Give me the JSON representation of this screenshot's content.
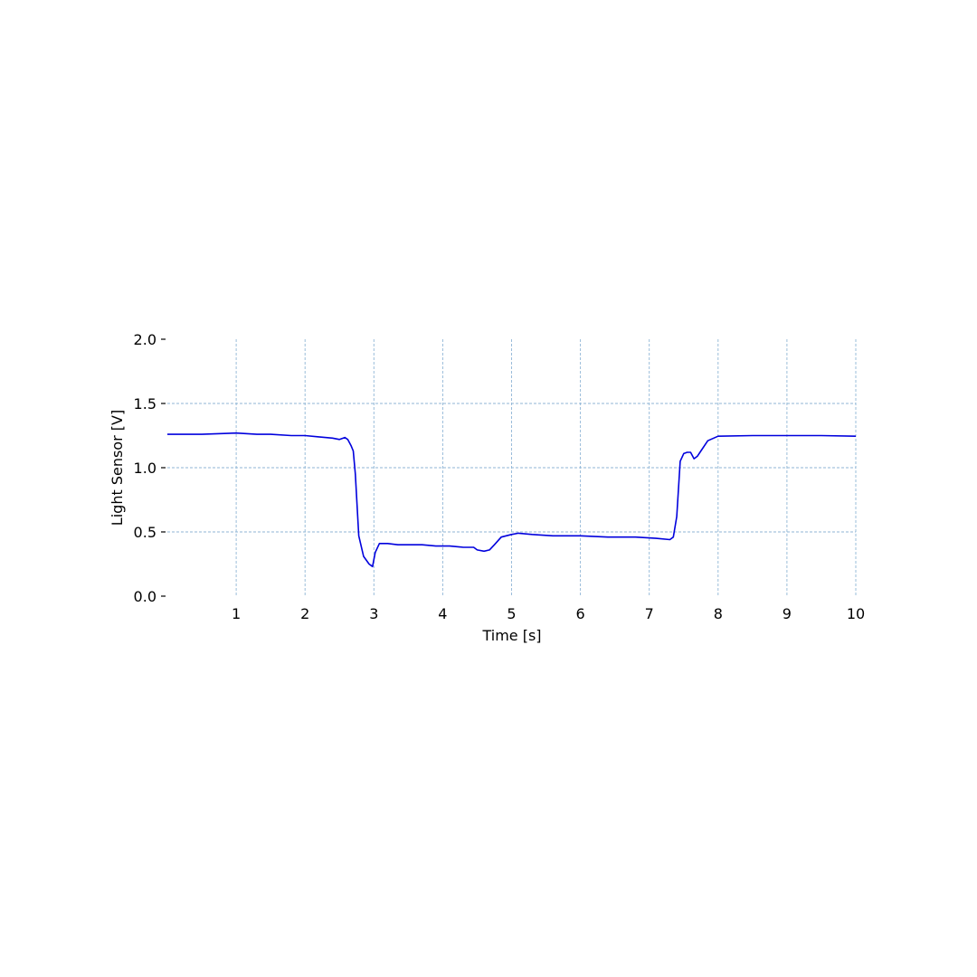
{
  "chart_data": {
    "type": "line",
    "title": "",
    "xlabel": "Time [s]",
    "ylabel": "Light Sensor [V]",
    "xlim": [
      0,
      10
    ],
    "ylim": [
      0,
      2
    ],
    "grid": true,
    "legend": false,
    "colors": {
      "line": "#0000dd",
      "grid": "#8fb6d6",
      "tick_dash": "#000000"
    },
    "x_ticks": [
      1,
      2,
      3,
      4,
      5,
      6,
      7,
      8,
      9,
      10
    ],
    "x_tick_labels": [
      "1",
      "2",
      "3",
      "4",
      "5",
      "6",
      "7",
      "8",
      "9",
      "10"
    ],
    "y_ticks": [
      0,
      0.5,
      1,
      1.5,
      2
    ],
    "y_tick_labels": [
      "0.0",
      "0.5",
      "1.0",
      "1.5",
      "2.0"
    ],
    "series": [
      {
        "x": [
          0,
          0.5,
          1.0,
          1.3,
          1.5,
          1.8,
          2.0,
          2.2,
          2.4,
          2.5,
          2.58,
          2.62,
          2.67,
          2.7,
          2.73,
          2.78,
          2.85,
          2.93,
          2.98,
          3.02,
          3.08,
          3.2,
          3.35,
          3.5,
          3.7,
          3.9,
          4.1,
          4.3,
          4.45,
          4.5,
          4.6,
          4.68,
          4.75,
          4.85,
          5.0,
          5.1,
          5.3,
          5.6,
          6.0,
          6.4,
          6.8,
          7.1,
          7.3,
          7.35,
          7.4,
          7.45,
          7.5,
          7.55,
          7.6,
          7.65,
          7.7,
          7.75,
          7.85,
          8.0,
          8.5,
          9.0,
          9.5,
          10.0
        ],
        "y": [
          1.26,
          1.26,
          1.27,
          1.26,
          1.26,
          1.25,
          1.25,
          1.24,
          1.23,
          1.22,
          1.235,
          1.22,
          1.17,
          1.13,
          0.95,
          0.47,
          0.31,
          0.25,
          0.23,
          0.34,
          0.41,
          0.41,
          0.4,
          0.4,
          0.4,
          0.39,
          0.39,
          0.38,
          0.38,
          0.36,
          0.35,
          0.36,
          0.4,
          0.46,
          0.48,
          0.49,
          0.48,
          0.47,
          0.47,
          0.46,
          0.46,
          0.45,
          0.44,
          0.46,
          0.62,
          1.05,
          1.11,
          1.12,
          1.12,
          1.07,
          1.09,
          1.13,
          1.21,
          1.245,
          1.25,
          1.25,
          1.25,
          1.245
        ]
      }
    ]
  }
}
